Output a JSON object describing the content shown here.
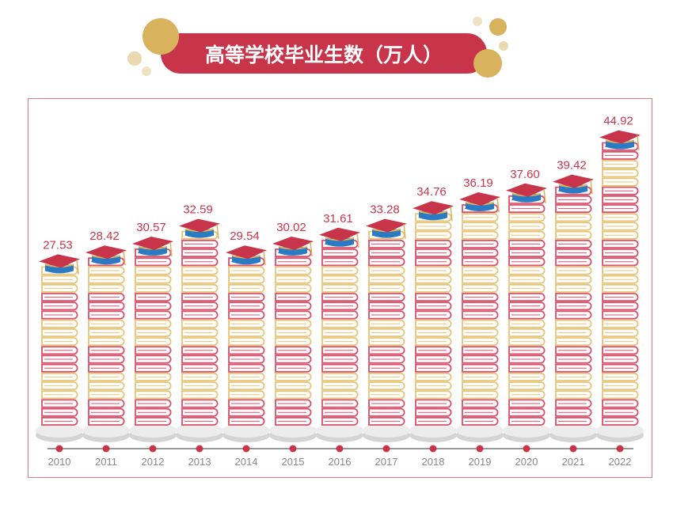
{
  "chart_data": {
    "type": "bar",
    "title": "高等学校毕业生数（万人）",
    "categories": [
      "2010",
      "2011",
      "2012",
      "2013",
      "2014",
      "2015",
      "2016",
      "2017",
      "2018",
      "2019",
      "2020",
      "2021",
      "2022"
    ],
    "values": [
      27.53,
      28.42,
      30.57,
      32.59,
      29.54,
      30.02,
      31.61,
      33.28,
      34.76,
      36.19,
      37.6,
      39.42,
      44.92
    ],
    "value_labels": [
      "27.53",
      "28.42",
      "30.57",
      "32.59",
      "29.54",
      "30.02",
      "31.61",
      "33.28",
      "34.76",
      "36.19",
      "37.60",
      "39.42",
      "44.92"
    ],
    "xlabel": "",
    "ylabel": "",
    "grid": false,
    "colors": {
      "accent": "#c8354a",
      "book_red": "#d9506a",
      "book_yellow": "#e6c57a",
      "gold": "#d9b25e",
      "cap_blue": "#2a7bc4",
      "axis": "#999999",
      "tick_text": "#888888"
    }
  }
}
